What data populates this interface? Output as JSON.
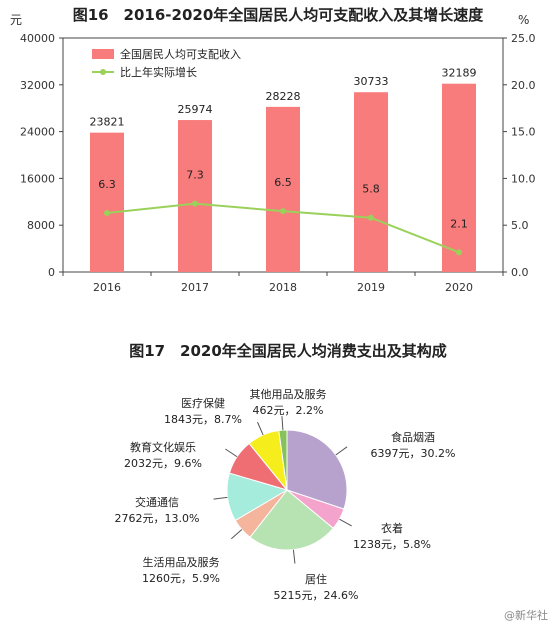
{
  "chart_data": [
    {
      "type": "bar",
      "title": "图16　2016-2020年全国居民人均可支配收入及其增长速度",
      "y_left_unit": "元",
      "y_right_unit": "%",
      "categories": [
        "2016",
        "2017",
        "2018",
        "2019",
        "2020"
      ],
      "series": [
        {
          "name": "全国居民人均可支配收入",
          "type": "bar",
          "color": "#f87c7c",
          "values": [
            23821,
            25974,
            28228,
            30733,
            32189
          ]
        },
        {
          "name": "比上年实际增长",
          "type": "line",
          "axis": "right",
          "color": "#9ad15a",
          "values": [
            6.3,
            7.3,
            6.5,
            5.8,
            2.1
          ]
        }
      ],
      "bar_labels": [
        "23821",
        "25974",
        "28228",
        "30733",
        "32189"
      ],
      "line_labels": [
        "6.3",
        "7.3",
        "6.5",
        "5.8",
        "2.1"
      ],
      "ylim_left": [
        0,
        40000
      ],
      "ylim_right": [
        0,
        25
      ],
      "yticks_left": [
        "0",
        "8000",
        "16000",
        "24000",
        "32000",
        "40000"
      ],
      "yticks_right": [
        "0.0",
        "5.0",
        "10.0",
        "15.0",
        "20.0",
        "25.0"
      ],
      "legend_position": "top-left",
      "grid": false
    },
    {
      "type": "pie",
      "title": "图17　2020年全国居民人均消费支出及其构成",
      "slices": [
        {
          "name": "食品烟酒",
          "value": 6397,
          "percent": 30.2,
          "amount_label": "6397元，30.2%",
          "color": "#b7a2cd"
        },
        {
          "name": "衣着",
          "value": 1238,
          "percent": 5.8,
          "amount_label": "1238元，5.8%",
          "color": "#f3a3cc"
        },
        {
          "name": "居住",
          "value": 5215,
          "percent": 24.6,
          "amount_label": "5215元，24.6%",
          "color": "#b7e3b2"
        },
        {
          "name": "生活用品及服务",
          "value": 1260,
          "percent": 5.9,
          "amount_label": "1260元，5.9%",
          "color": "#f5b49c"
        },
        {
          "name": "交通通信",
          "value": 2762,
          "percent": 13.0,
          "amount_label": "2762元，13.0%",
          "color": "#a6ecdc"
        },
        {
          "name": "教育文化娱乐",
          "value": 2032,
          "percent": 9.6,
          "amount_label": "2032元，9.6%",
          "color": "#ee6e73"
        },
        {
          "name": "医疗保健",
          "value": 1843,
          "percent": 8.7,
          "amount_label": "1843元，8.7%",
          "color": "#f6ee1c"
        },
        {
          "name": "其他用品及服务",
          "value": 462,
          "percent": 2.2,
          "amount_label": "462元，2.2%",
          "color": "#86c25a"
        }
      ]
    }
  ],
  "watermark": "@新华社"
}
